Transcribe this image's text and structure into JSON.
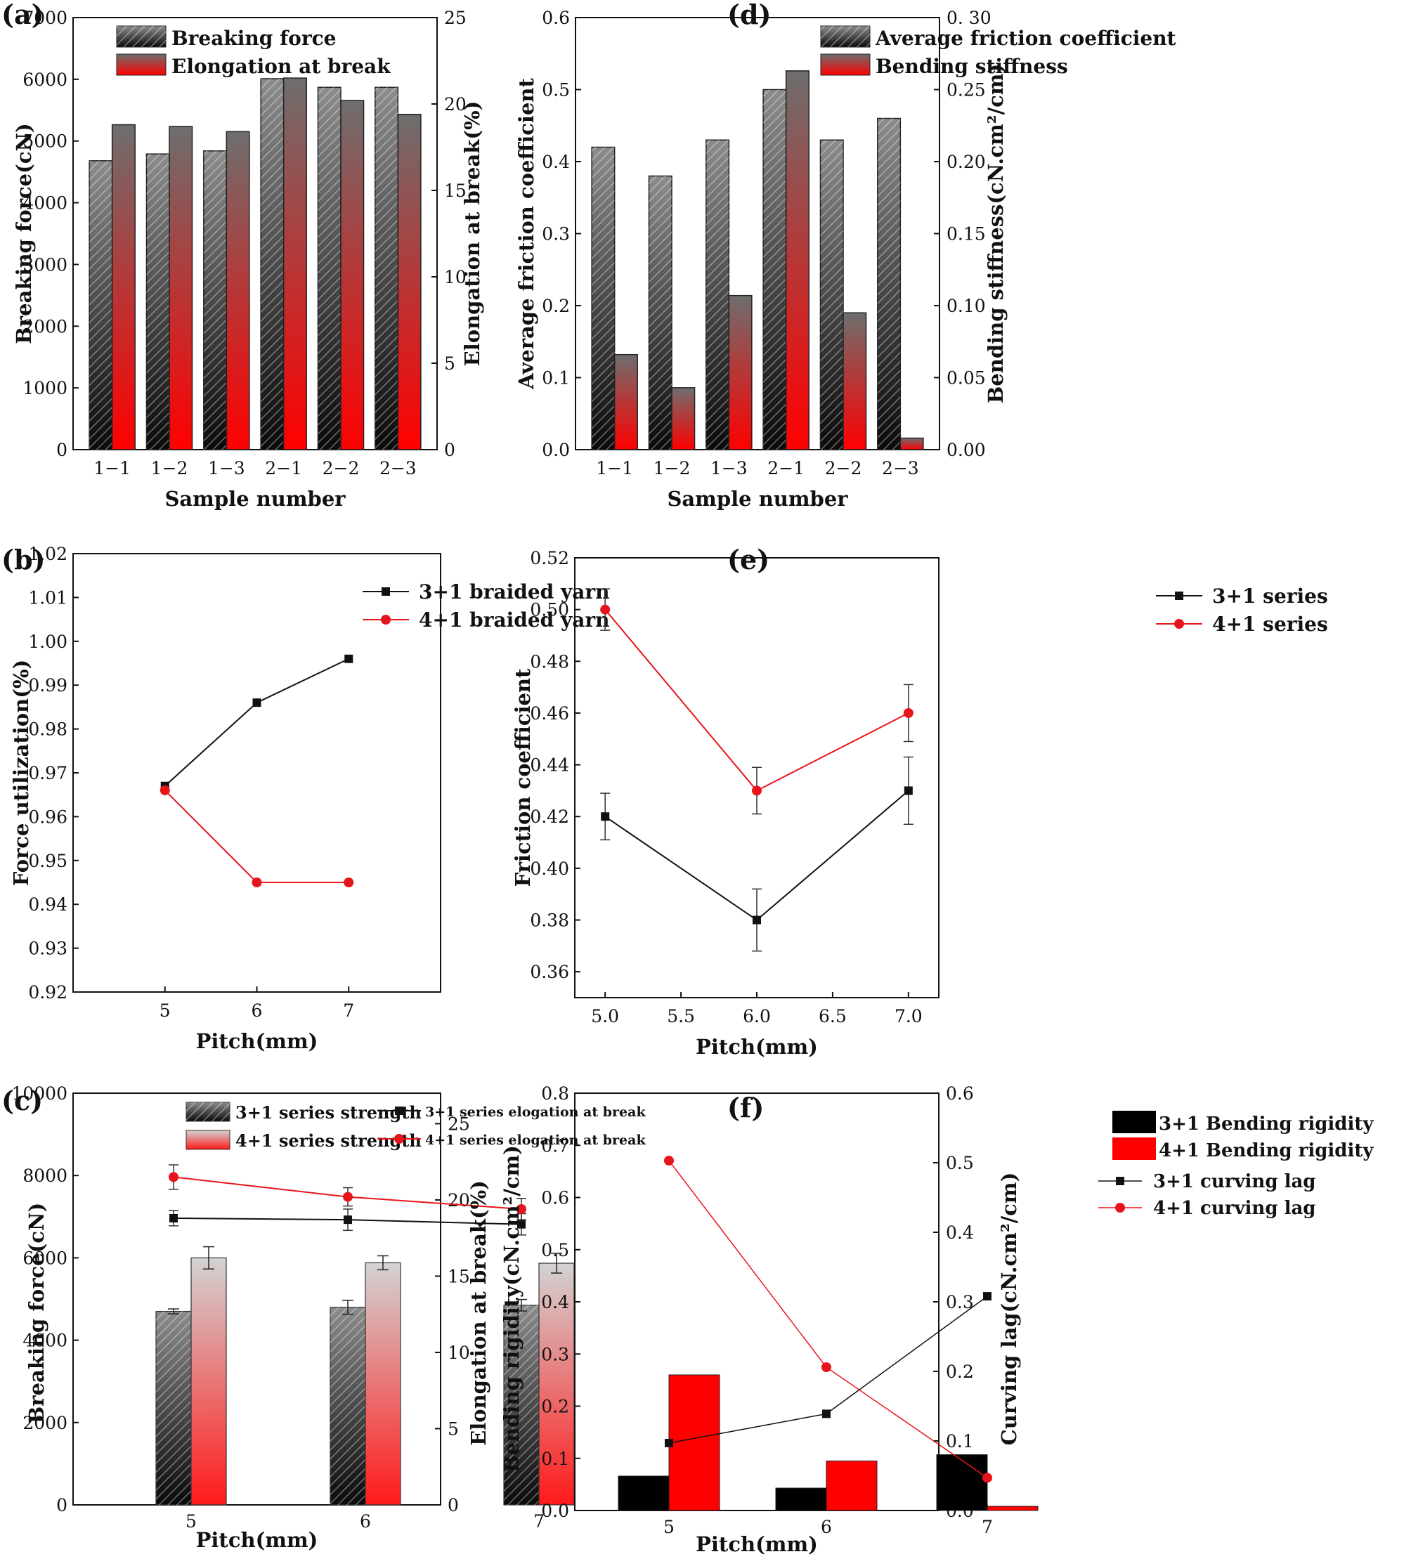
{
  "figure": {
    "panel_labels": [
      "(a)",
      "(b)",
      "(c)",
      "(d)",
      "(e)",
      "(f)"
    ]
  },
  "colors": {
    "black": "#111111",
    "red": "#e8141b",
    "gray": "#777777"
  },
  "chart_data": [
    {
      "panel": "(a)",
      "type": "bar",
      "categories": [
        "1−1",
        "1−2",
        "1−3",
        "2−1",
        "2−2",
        "2−3"
      ],
      "xlabel": "Sample number",
      "ylabel": "Breaking force(cN)",
      "ylim": [
        0,
        7000
      ],
      "yticks": [
        "0",
        "1000",
        "2000",
        "3000",
        "4000",
        "5000",
        "6000",
        "7000"
      ],
      "y2label": "Elongation at break(%)",
      "y2lim": [
        0,
        25
      ],
      "y2ticks": [
        "0",
        "5",
        "10",
        "15",
        "20",
        "25"
      ],
      "legend": [
        "Breaking force",
        "Elongation at break"
      ],
      "series": [
        {
          "name": "Breaking force",
          "axis": "left",
          "values": [
            4680,
            4790,
            4840,
            6010,
            5870,
            5870
          ]
        },
        {
          "name": "Elongation at break",
          "axis": "right",
          "values": [
            18.8,
            18.7,
            18.4,
            21.5,
            20.2,
            19.4
          ]
        }
      ]
    },
    {
      "panel": "(b)",
      "type": "line",
      "x": [
        5,
        6,
        7
      ],
      "xticks": [
        "5",
        "6",
        "7"
      ],
      "xlim": [
        4,
        8
      ],
      "xlabel": "Pitch(mm)",
      "ylabel": "Force utilization(%)",
      "ylim": [
        0.92,
        1.02
      ],
      "yticks": [
        "0.92",
        "0.93",
        "0.94",
        "0.95",
        "0.96",
        "0.97",
        "0.98",
        "0.99",
        "1.00",
        "1.01",
        "1.02"
      ],
      "legend": [
        "3+1  braided yarn",
        "4+1  braided yarn"
      ],
      "series": [
        {
          "name": "3+1  braided yarn",
          "values": [
            0.967,
            0.986,
            0.996
          ]
        },
        {
          "name": "4+1  braided yarn",
          "values": [
            0.966,
            0.945,
            0.945
          ]
        }
      ]
    },
    {
      "panel": "(c)",
      "type": "bar",
      "categories": [
        "5",
        "6",
        "7"
      ],
      "xlabel": "Pitch(mm)",
      "ylabel": "Breaking force(cN)",
      "ylim": [
        0,
        10000
      ],
      "yticks": [
        "0",
        "2000",
        "4000",
        "6000",
        "8000",
        "10000"
      ],
      "y2label": "Elongation at break(%)",
      "y2lim": [
        0,
        27
      ],
      "y2ticks": [
        "0",
        "5",
        "10",
        "15",
        "20",
        "25"
      ],
      "legend": [
        "3+1 series strength",
        "4+1 series strength",
        "3+1 series elogation at break",
        "4+1 series elogation at break"
      ],
      "series": [
        {
          "name": "3+1 series strength",
          "axis": "left",
          "values": [
            4700,
            4800,
            4850
          ],
          "errors": [
            60,
            170,
            140
          ]
        },
        {
          "name": "4+1 series strength",
          "axis": "left",
          "values": [
            6000,
            5880,
            5870
          ],
          "errors": [
            270,
            170,
            240
          ]
        },
        {
          "name": "3+1 series elogation at break",
          "axis": "right",
          "values": [
            18.8,
            18.7,
            18.4
          ],
          "errors": [
            0.5,
            0.7,
            0.7
          ]
        },
        {
          "name": "4+1 series elogation at break",
          "axis": "right",
          "values": [
            21.5,
            20.2,
            19.4
          ],
          "errors": [
            0.8,
            0.6,
            0.7
          ]
        }
      ]
    },
    {
      "panel": "(d)",
      "type": "bar",
      "categories": [
        "1−1",
        "1−2",
        "1−3",
        "2−1",
        "2−2",
        "2−3"
      ],
      "xlabel": "Sample number",
      "ylabel": "Average friction coefficient",
      "ylim": [
        0,
        0.6
      ],
      "yticks": [
        "0.0",
        "0.1",
        "0.2",
        "0.3",
        "0.4",
        "0.5",
        "0.6"
      ],
      "y2label": "Bending stiffness(cN.cm²/cm)",
      "y2lim": [
        0,
        0.3
      ],
      "y2ticks": [
        "0.00",
        "0.05",
        "0.10",
        "0.15",
        "0.20",
        "0.25",
        "0. 30"
      ],
      "legend": [
        "Average friction coefficient",
        "Bending stiffness"
      ],
      "series": [
        {
          "name": "Average friction coefficient",
          "axis": "left",
          "values": [
            0.42,
            0.38,
            0.43,
            0.5,
            0.43,
            0.46
          ]
        },
        {
          "name": "Bending stiffness",
          "axis": "right",
          "values": [
            0.066,
            0.043,
            0.107,
            0.263,
            0.095,
            0.008
          ]
        }
      ]
    },
    {
      "panel": "(e)",
      "type": "line",
      "x": [
        5.0,
        6.0,
        7.0
      ],
      "xticks": [
        "5.0",
        "5.5",
        "6.0",
        "6.5",
        "7.0"
      ],
      "xlim": [
        4.8,
        7.2
      ],
      "xlabel": "Pitch(mm)",
      "ylabel": "Friction coefficient",
      "ylim": [
        0.35,
        0.52
      ],
      "yticks": [
        "0.36",
        "0.38",
        "0.40",
        "0.42",
        "0.44",
        "0.46",
        "0.48",
        "0.50",
        "0.52"
      ],
      "legend": [
        "3+1 series",
        "4+1 series"
      ],
      "series": [
        {
          "name": "3+1 series",
          "values": [
            0.42,
            0.38,
            0.43
          ],
          "errors": [
            0.009,
            0.012,
            0.013
          ]
        },
        {
          "name": "4+1 series",
          "values": [
            0.5,
            0.43,
            0.46
          ],
          "errors": [
            0.008,
            0.009,
            0.011
          ]
        }
      ]
    },
    {
      "panel": "(f)",
      "type": "bar",
      "categories": [
        "5",
        "6",
        "7"
      ],
      "xlabel": "Pitch(mm)",
      "ylabel": "Bending rigidity(cN.cm²/cm)",
      "ylim": [
        0,
        0.8
      ],
      "yticks": [
        "0.0",
        "0.1",
        "0.2",
        "0.3",
        "0.4",
        "0.5",
        "0.6",
        "0.7",
        "0.8"
      ],
      "y2label": "Curving lag(cN.cm²/cm)",
      "y2lim": [
        0,
        0.6
      ],
      "y2ticks": [
        "0.0",
        "0.1",
        "0.2",
        "0.3",
        "0.4",
        "0.5",
        "0.6"
      ],
      "legend": [
        "3+1 Bending rigidity",
        "4+1 Bending rigidity",
        "3+1 curving lag",
        "4+1 curving lag"
      ],
      "series": [
        {
          "name": "3+1 Bending rigidity",
          "axis": "left",
          "values": [
            0.066,
            0.043,
            0.107
          ]
        },
        {
          "name": "4+1 Bending rigidity",
          "axis": "left",
          "values": [
            0.26,
            0.095,
            0.008
          ]
        },
        {
          "name": "3+1 curving lag",
          "axis": "right",
          "values": [
            0.097,
            0.139,
            0.308
          ]
        },
        {
          "name": "4+1 curving lag",
          "axis": "right",
          "values": [
            0.503,
            0.206,
            0.047
          ]
        }
      ]
    }
  ]
}
